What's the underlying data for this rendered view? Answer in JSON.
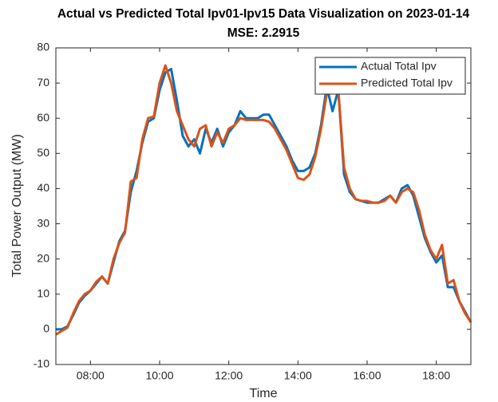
{
  "chart_data": {
    "type": "line",
    "title": "Actual vs Predicted Total Ipv01-Ipv15 Data Visualization on 2023-01-14",
    "subtitle": "MSE: 2.2915",
    "x_label": "Time",
    "y_label": "Total Power Output (MW)",
    "x": [
      "07:00",
      "07:10",
      "07:20",
      "07:30",
      "07:40",
      "07:50",
      "08:00",
      "08:10",
      "08:20",
      "08:30",
      "08:40",
      "08:50",
      "09:00",
      "09:10",
      "09:20",
      "09:30",
      "09:40",
      "09:50",
      "10:00",
      "10:10",
      "10:20",
      "10:30",
      "10:40",
      "10:50",
      "11:00",
      "11:10",
      "11:20",
      "11:30",
      "11:40",
      "11:50",
      "12:00",
      "12:10",
      "12:20",
      "12:30",
      "12:40",
      "12:50",
      "13:00",
      "13:10",
      "13:20",
      "13:30",
      "13:40",
      "13:50",
      "14:00",
      "14:10",
      "14:20",
      "14:30",
      "14:40",
      "14:50",
      "15:00",
      "15:10",
      "15:20",
      "15:30",
      "15:40",
      "15:50",
      "16:00",
      "16:10",
      "16:20",
      "16:30",
      "16:40",
      "16:50",
      "17:00",
      "17:10",
      "17:20",
      "17:30",
      "17:40",
      "17:50",
      "18:00",
      "18:10",
      "18:20",
      "18:30",
      "18:40",
      "18:50",
      "19:00"
    ],
    "series": [
      {
        "name": "Actual Total Ipv",
        "color": "#0072BD",
        "values": [
          0,
          0,
          0.8,
          4,
          7.5,
          9.5,
          11,
          13,
          15,
          13,
          19,
          25,
          28,
          39,
          45,
          53,
          59,
          60,
          68,
          73,
          74,
          65,
          55,
          52,
          54,
          50,
          57,
          53,
          57,
          52,
          56,
          58,
          62,
          60,
          60,
          60,
          61,
          61,
          58,
          55,
          52,
          48,
          45,
          45,
          46,
          50,
          58,
          69,
          62,
          68,
          44,
          39,
          37,
          36.5,
          36,
          36,
          36,
          37,
          38,
          36,
          40,
          41,
          38,
          32,
          26,
          22,
          19,
          21,
          12,
          12,
          8,
          5,
          2
        ]
      },
      {
        "name": "Predicted Total Ipv",
        "color": "#D95319",
        "values": [
          -1.5,
          -0.5,
          0.5,
          4.5,
          8,
          10,
          11,
          13.5,
          15,
          13,
          20,
          24.5,
          27.5,
          42,
          43,
          54,
          60,
          60.5,
          70,
          75,
          70,
          62,
          58,
          54,
          52,
          57,
          58,
          52,
          56,
          53,
          57,
          58,
          60,
          59.5,
          59.5,
          59.5,
          59.5,
          59,
          57,
          54,
          51,
          47,
          43,
          42.5,
          44,
          49,
          57,
          67,
          70,
          68,
          46,
          40,
          37,
          36.5,
          36.5,
          36,
          36,
          36.5,
          38,
          36,
          39,
          40,
          39,
          34,
          27,
          22.5,
          20,
          24,
          13,
          14,
          8,
          4.5,
          2
        ]
      }
    ],
    "xlim": [
      "07:00",
      "19:00"
    ],
    "xticks": [
      "08:00",
      "10:00",
      "12:00",
      "14:00",
      "16:00",
      "18:00"
    ],
    "ylim": [
      -10,
      80
    ],
    "yticks": [
      -10,
      0,
      10,
      20,
      30,
      40,
      50,
      60,
      70,
      80
    ],
    "grid": false,
    "legend": "top-right"
  }
}
